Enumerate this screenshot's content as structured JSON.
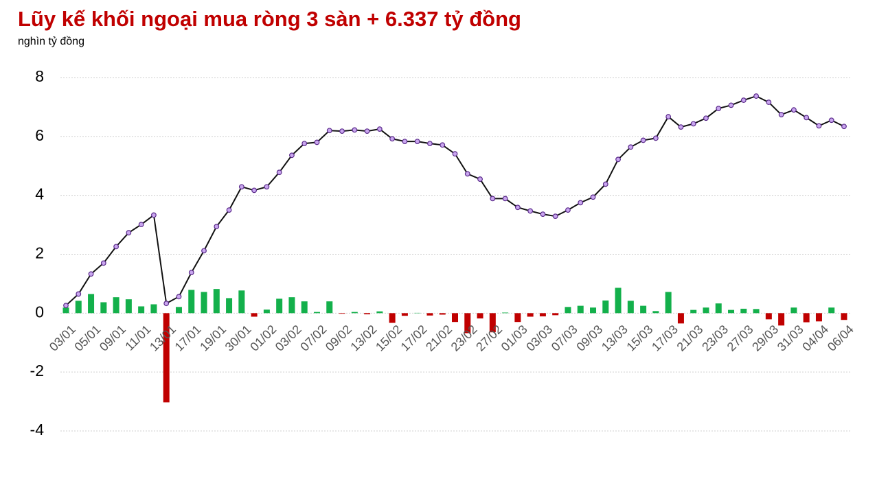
{
  "chart_data": {
    "type": "combo",
    "title": "Lũy kế khối ngoại mua ròng 3 sàn + 6.337 tỷ đồng",
    "subtitle": "nghìn tỷ đồng",
    "categories": [
      "03/01",
      null,
      "05/01",
      null,
      "09/01",
      null,
      "11/01",
      null,
      "13/01",
      null,
      "17/01",
      null,
      "19/01",
      null,
      "30/01",
      null,
      "01/02",
      null,
      "03/02",
      null,
      "07/02",
      null,
      "09/02",
      null,
      "13/02",
      null,
      "15/02",
      null,
      "17/02",
      null,
      "21/02",
      null,
      "23/02",
      null,
      "27/02",
      null,
      "01/03",
      null,
      "03/03",
      null,
      "07/03",
      null,
      "09/03",
      null,
      "13/03",
      null,
      "15/03",
      null,
      "17/03",
      null,
      "21/03",
      null,
      "23/03",
      null,
      "27/03",
      null,
      "29/03",
      null,
      "31/03",
      null,
      "04/04",
      null,
      "06/04"
    ],
    "series": [
      {
        "type": "bar",
        "color": "#13b04b",
        "negative_color": "#c00000",
        "values": [
          0.19,
          0.42,
          0.65,
          0.37,
          0.54,
          0.47,
          0.23,
          0.3,
          -3.03,
          0.21,
          0.79,
          0.72,
          0.82,
          0.51,
          0.77,
          -0.12,
          0.12,
          0.49,
          0.54,
          0.4,
          0.04,
          0.4,
          -0.02,
          0.04,
          -0.04,
          0.06,
          -0.33,
          -0.09,
          0.01,
          -0.08,
          -0.05,
          -0.3,
          -0.68,
          -0.18,
          -0.65,
          0.02,
          -0.3,
          -0.12,
          -0.11,
          -0.07,
          0.21,
          0.25,
          0.19,
          0.43,
          0.86,
          0.42,
          0.25,
          0.07,
          0.72,
          -0.35,
          0.11,
          0.19,
          0.33,
          0.11,
          0.15,
          0.14,
          -0.21,
          -0.42,
          0.19,
          -0.31,
          -0.28,
          0.19,
          -0.23
        ]
      },
      {
        "type": "line",
        "color": "#111111",
        "marker_color": "#c9a6ef",
        "marker_edge": "#5a2a8a",
        "values": [
          0.26,
          0.65,
          1.33,
          1.7,
          2.26,
          2.73,
          3.01,
          3.33,
          0.33,
          0.56,
          1.38,
          2.12,
          2.94,
          3.5,
          4.29,
          4.17,
          4.29,
          4.78,
          5.36,
          5.76,
          5.8,
          6.2,
          6.18,
          6.22,
          6.18,
          6.25,
          5.92,
          5.83,
          5.83,
          5.76,
          5.71,
          5.41,
          4.73,
          4.55,
          3.89,
          3.89,
          3.59,
          3.47,
          3.36,
          3.29,
          3.5,
          3.75,
          3.94,
          4.38,
          5.22,
          5.64,
          5.87,
          5.94,
          6.67,
          6.32,
          6.43,
          6.62,
          6.95,
          7.06,
          7.23,
          7.37,
          7.16,
          6.74,
          6.9,
          6.64,
          6.36,
          6.55,
          6.34
        ]
      }
    ],
    "ylim": [
      -4,
      8
    ],
    "yticks": [
      -4,
      -2,
      0,
      2,
      4,
      6,
      8
    ],
    "grid": true
  }
}
